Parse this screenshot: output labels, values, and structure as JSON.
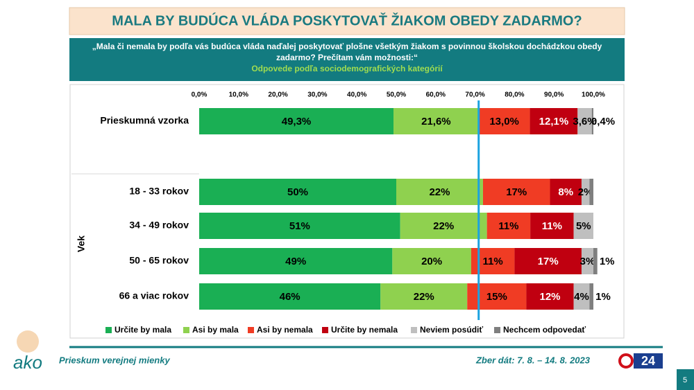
{
  "header": {
    "title": "MALA BY BUDÚCA VLÁDA POSKYTOVAŤ ŽIAKOM OBEDY ZADARMO?",
    "question": "„Mala či nemala by podľa vás budúca vláda naďalej poskytovať plošne všetkým žiakom s povinnou školskou dochádzkou obedy zadarmo? Prečítam vám možnosti:“",
    "subtitle": "Odpovede podľa sociodemografických kategórií"
  },
  "chart_data": {
    "type": "stacked-bar-horizontal",
    "categories": [
      "Prieskumná vzorka",
      "18 - 33 rokov",
      "34 - 49 rokov",
      "50 - 65 rokov",
      "66 a viac rokov"
    ],
    "group_label": "Vek",
    "xlim": [
      0,
      100
    ],
    "xticks": [
      {
        "value": 0,
        "label": "0,0%"
      },
      {
        "value": 10,
        "label": "10,0%"
      },
      {
        "value": 20,
        "label": "20,0%"
      },
      {
        "value": 30,
        "label": "30,0%"
      },
      {
        "value": 40,
        "label": "40,0%"
      },
      {
        "value": 50,
        "label": "50,0%"
      },
      {
        "value": 60,
        "label": "60,0%"
      },
      {
        "value": 70,
        "label": "70,0%"
      },
      {
        "value": 80,
        "label": "80,0%"
      },
      {
        "value": 90,
        "label": "90,0%"
      },
      {
        "value": 100,
        "label": "100,0%"
      }
    ],
    "reference_line": 70.9,
    "series": [
      {
        "name": "Určite by mala",
        "color": "#1aaf54",
        "values": [
          49.3,
          50,
          51,
          49,
          46
        ],
        "value_labels": [
          "49,3%",
          "50%",
          "51%",
          "49%",
          "46%"
        ]
      },
      {
        "name": "Asi by mala",
        "color": "#8fd14f",
        "values": [
          21.6,
          22,
          22,
          20,
          22
        ],
        "value_labels": [
          "21,6%",
          "22%",
          "22%",
          "20%",
          "22%"
        ]
      },
      {
        "name": "Asi by nemala",
        "color": "#f03c24",
        "values": [
          13.0,
          17,
          11,
          11,
          15
        ],
        "value_labels": [
          "13,0%",
          "17%",
          "11%",
          "11%",
          "15%"
        ]
      },
      {
        "name": "Určite by nemala",
        "color": "#c00010",
        "values": [
          12.1,
          8,
          11,
          17,
          12
        ],
        "value_labels": [
          "12,1%",
          "8%",
          "11%",
          "17%",
          "12%"
        ]
      },
      {
        "name": "Neviem posúdiť",
        "color": "#bfbfbf",
        "values": [
          3.6,
          2,
          5,
          3,
          4
        ],
        "value_labels": [
          "3,6%",
          "2%",
          "5%",
          "3%",
          "4%"
        ]
      },
      {
        "name": "Nechcem odpovedať",
        "color": "#7f7f7f",
        "values": [
          0.4,
          1,
          0,
          1,
          1
        ],
        "value_labels": [
          "0,4%",
          null,
          null,
          "1%",
          "1%"
        ]
      }
    ]
  },
  "footer": {
    "left": "Prieskum verejnej mienky",
    "right": "Zber dát: 7. 8. – 14. 8. 2023",
    "page": "5",
    "logo": "ako",
    "tv_logo": "24"
  }
}
